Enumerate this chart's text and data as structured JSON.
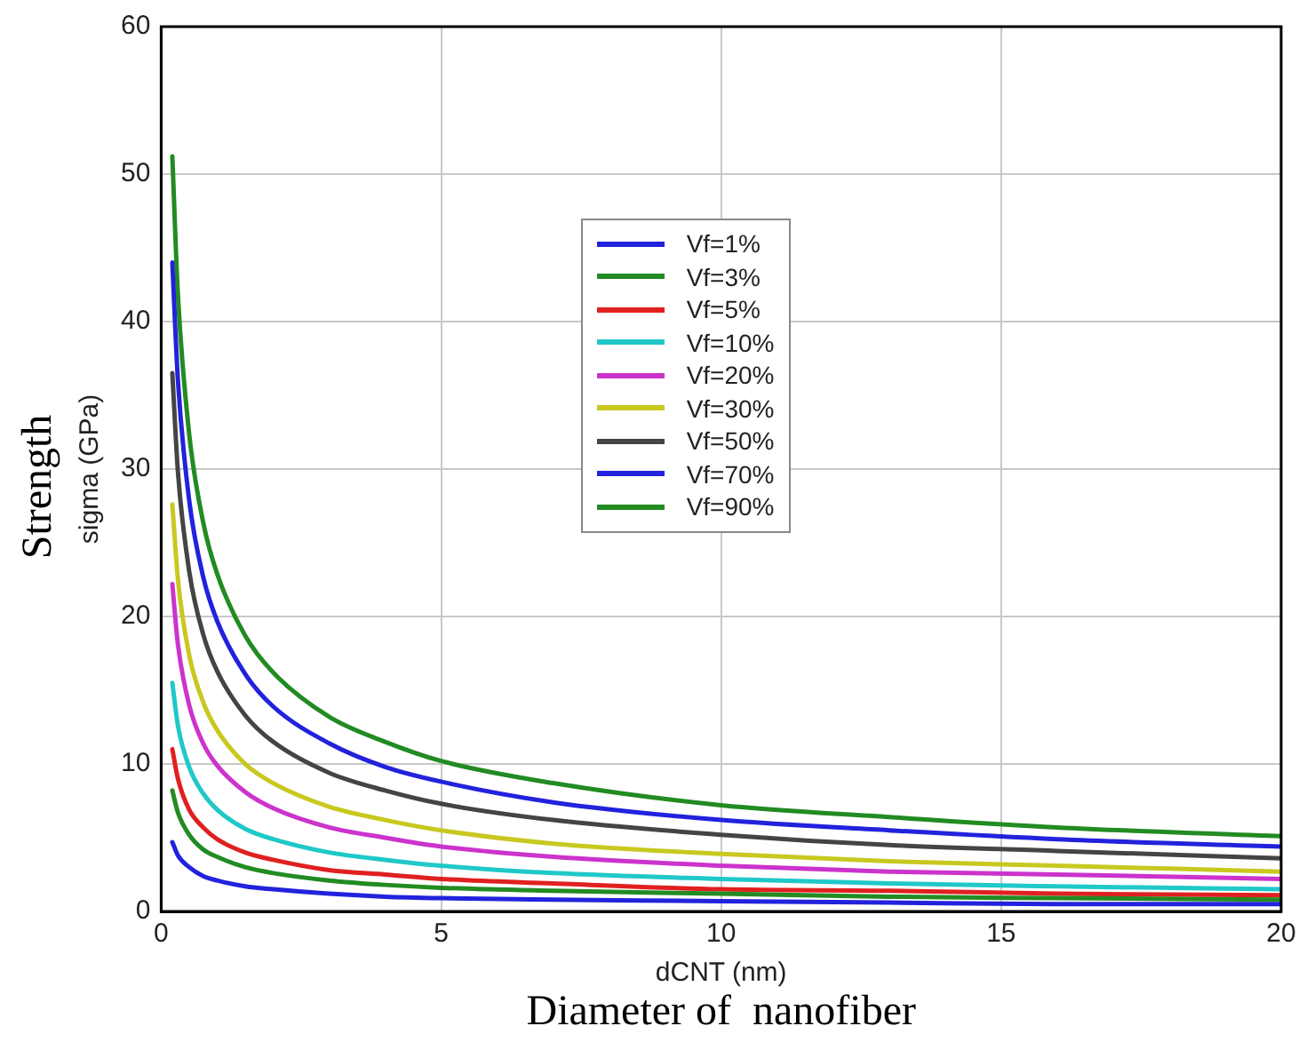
{
  "chart_data": {
    "type": "line",
    "xlabel": "dCNT (nm)",
    "ylabel": "sigma (GPa)",
    "annotations": [
      "Strength",
      "Diameter of  nanofiber"
    ],
    "x": [
      0.2,
      0.3,
      0.5,
      0.75,
      1,
      1.5,
      2,
      3,
      4,
      5,
      7,
      10,
      13,
      16,
      20
    ],
    "xlim": [
      0,
      20
    ],
    "xticks": [
      0,
      5,
      10,
      15,
      20
    ],
    "ylim": [
      0,
      60
    ],
    "yticks": [
      0,
      10,
      20,
      30,
      40,
      50,
      60
    ],
    "grid": true,
    "legend": "top",
    "marker": "none",
    "line_style": "solid",
    "series": [
      {
        "name": "Vf=1%",
        "color": "#2222dd",
        "values": [
          4.7,
          3.8,
          3.0,
          2.4,
          2.1,
          1.7,
          1.5,
          1.2,
          1.0,
          0.9,
          0.8,
          0.7,
          0.6,
          0.5,
          0.5
        ]
      },
      {
        "name": "Vf=3%",
        "color": "#228b22",
        "values": [
          8.2,
          6.7,
          5.2,
          4.2,
          3.7,
          3.0,
          2.6,
          2.1,
          1.8,
          1.6,
          1.4,
          1.2,
          1.0,
          0.9,
          0.8
        ]
      },
      {
        "name": "Vf=5%",
        "color": "#e02020",
        "values": [
          11.0,
          9.0,
          6.9,
          5.7,
          4.9,
          4.0,
          3.5,
          2.8,
          2.5,
          2.2,
          1.9,
          1.5,
          1.4,
          1.2,
          1.1
        ]
      },
      {
        "name": "Vf=10%",
        "color": "#20c8c8",
        "values": [
          15.5,
          12.6,
          9.8,
          8.0,
          6.9,
          5.6,
          4.9,
          4.0,
          3.5,
          3.1,
          2.6,
          2.2,
          1.9,
          1.7,
          1.5
        ]
      },
      {
        "name": "Vf=20%",
        "color": "#cc33cc",
        "values": [
          22.2,
          18.1,
          14.0,
          11.4,
          9.9,
          8.1,
          7.0,
          5.7,
          5.0,
          4.4,
          3.7,
          3.1,
          2.7,
          2.5,
          2.2
        ]
      },
      {
        "name": "Vf=30%",
        "color": "#c8c820",
        "values": [
          27.6,
          22.5,
          17.4,
          14.2,
          12.3,
          10.0,
          8.7,
          7.1,
          6.2,
          5.5,
          4.6,
          3.9,
          3.4,
          3.1,
          2.7
        ]
      },
      {
        "name": "Vf=50%",
        "color": "#444444",
        "values": [
          36.5,
          29.8,
          23.1,
          18.8,
          16.3,
          13.3,
          11.5,
          9.4,
          8.2,
          7.3,
          6.2,
          5.2,
          4.5,
          4.1,
          3.6
        ]
      },
      {
        "name": "Vf=70%",
        "color": "#2222dd",
        "values": [
          44,
          36.0,
          27.9,
          22.7,
          19.7,
          16.1,
          13.9,
          11.4,
          9.8,
          8.8,
          7.4,
          6.2,
          5.5,
          4.9,
          4.4
        ]
      },
      {
        "name": "Vf=90%",
        "color": "#228b22",
        "values": [
          51.2,
          41.8,
          32.4,
          26.4,
          22.9,
          18.7,
          16.2,
          13.2,
          11.5,
          10.2,
          8.7,
          7.2,
          6.4,
          5.7,
          5.1
        ]
      }
    ]
  }
}
